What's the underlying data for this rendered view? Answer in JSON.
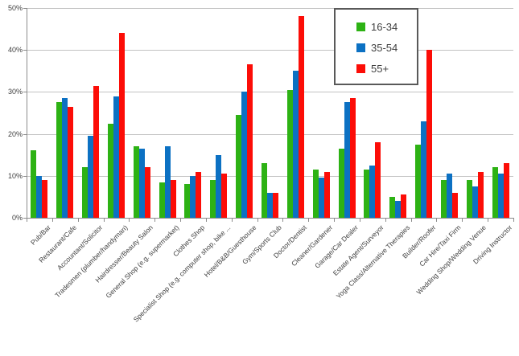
{
  "chart_data": {
    "type": "bar",
    "title": "",
    "categories": [
      "Pub/Bar",
      "Restaurant/Cafe",
      "Accountant/Solicitor",
      "Tradesmen (plumber/handyman)",
      "Hairdresser/Beauty Salon",
      "General Shop (e.g. supermarket)",
      "Clothes Shop",
      "Specialist Shop (e.g. computer shop, bike ...",
      "Hotel/B&B/Guesthouse",
      "Gym/Sports Club",
      "Doctor/Dentist",
      "Cleaner/Gardener",
      "Garage/Car Dealer",
      "Estate Agent/Surveyor",
      "Yoga Class/Alternative Therapies",
      "Builder/Roofer",
      "Car Hire/Taxi Firm",
      "Wedding Shop/Wedding Venue",
      "Driving Instructor"
    ],
    "series": [
      {
        "name": "16-34",
        "color": "#2db214",
        "values": [
          16,
          27.5,
          12,
          22.5,
          17,
          8.5,
          8,
          9,
          24.5,
          13,
          30.5,
          11.5,
          16.5,
          11.5,
          5,
          17.5,
          9,
          9,
          12
        ]
      },
      {
        "name": "35-54",
        "color": "#0c71c3",
        "values": [
          10,
          28.5,
          19.5,
          29,
          16.5,
          17,
          10,
          15,
          30,
          6,
          35,
          9.5,
          27.5,
          12.5,
          4,
          23,
          10.5,
          7.5,
          10.5
        ]
      },
      {
        "name": "55+",
        "color": "#fc0d07",
        "values": [
          9,
          26.5,
          31.5,
          44,
          12,
          9,
          11,
          10.5,
          36.5,
          6,
          48,
          11,
          28.5,
          18,
          5.5,
          40,
          6,
          11,
          13
        ]
      }
    ],
    "ylim": [
      0,
      50
    ],
    "y_tick_step": 10,
    "y_tick_labels": [
      "0%",
      "10%",
      "20%",
      "30%",
      "40%",
      "50%"
    ],
    "xlabel": "",
    "ylabel": "",
    "grid": true,
    "legend_position": "top-right-inside"
  },
  "colors": {
    "background": "#ffffff",
    "gridline": "#c3c3c3",
    "axis": "#8c8c8c",
    "text": "#3f3f3f",
    "legend_border": "#595959"
  }
}
